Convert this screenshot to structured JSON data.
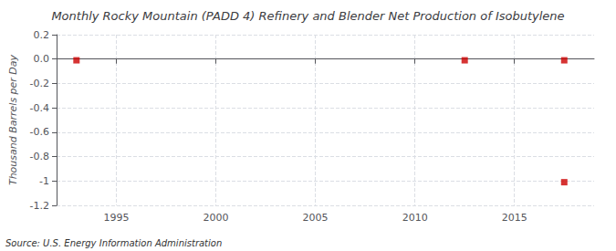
{
  "chart_data": {
    "type": "scatter",
    "title": "Monthly Rocky Mountain (PADD 4) Refinery and Blender Net Production of Isobutylene",
    "ylabel": "Thousand Barrels per Day",
    "annotation": "Source: U.S. Energy Information Administration",
    "x": [
      1993.0,
      2012.5,
      2017.5,
      2017.5
    ],
    "values": [
      -0.01,
      -0.01,
      -0.01,
      -1.01
    ],
    "color": "#cc0000",
    "marker": "square",
    "xlim": [
      1992,
      2019
    ],
    "ylim": [
      -1.2,
      0.2
    ],
    "xticks": [
      1995,
      2000,
      2005,
      2010,
      2015
    ],
    "yticks": [
      0.2,
      {
        "value": 0.0,
        "label": "0.0"
      },
      -0.2,
      -0.4,
      -0.6,
      -0.8,
      -1.0,
      -1.2
    ],
    "grid": true
  }
}
